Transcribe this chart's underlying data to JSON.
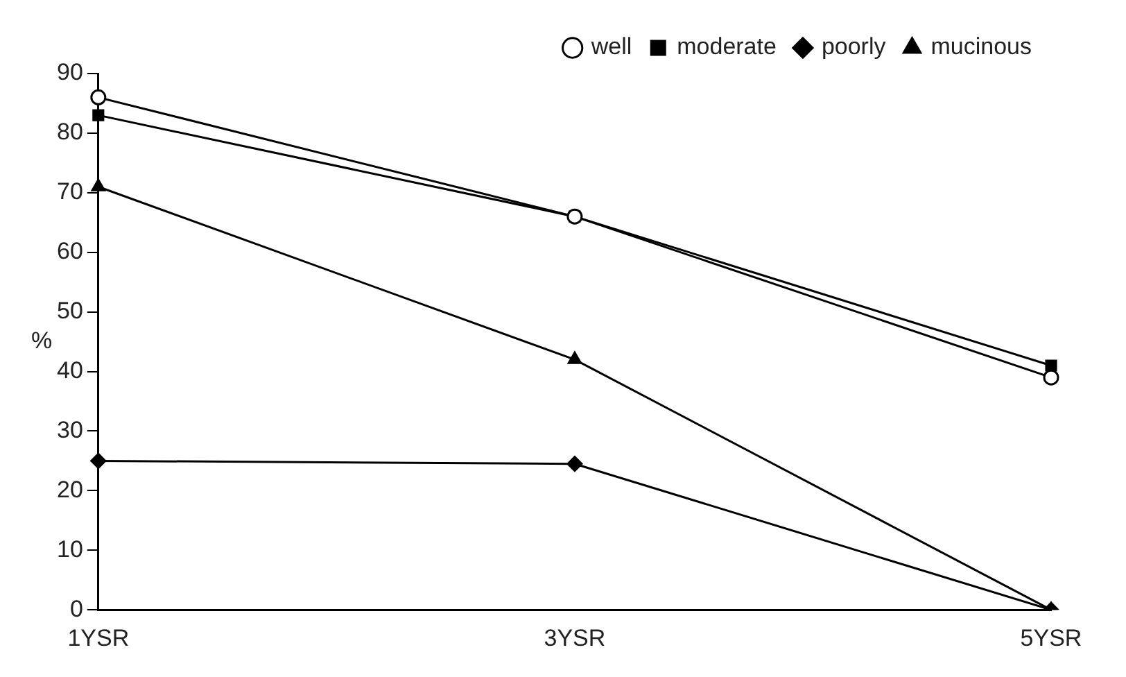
{
  "chart_data": {
    "type": "line",
    "ylabel": "%",
    "categories": [
      "1YSR",
      "3YSR",
      "5YSR"
    ],
    "series": [
      {
        "name": "well",
        "color": "#000000",
        "marker": "circle",
        "values": [
          86,
          66,
          39
        ]
      },
      {
        "name": "moderate",
        "color": "#000000",
        "marker": "square",
        "values": [
          83,
          66,
          41
        ]
      },
      {
        "name": "poorly",
        "color": "#000000",
        "marker": "diamond",
        "values": [
          25,
          24.5,
          0
        ]
      },
      {
        "name": "mucinous",
        "color": "#000000",
        "marker": "triangle",
        "values": [
          71,
          42,
          0
        ]
      }
    ],
    "ylim": [
      0,
      90
    ],
    "yticks": [
      0,
      10,
      20,
      30,
      40,
      50,
      60,
      70,
      80,
      90
    ],
    "grid": false,
    "legend": "top right",
    "line_style": "solid"
  }
}
